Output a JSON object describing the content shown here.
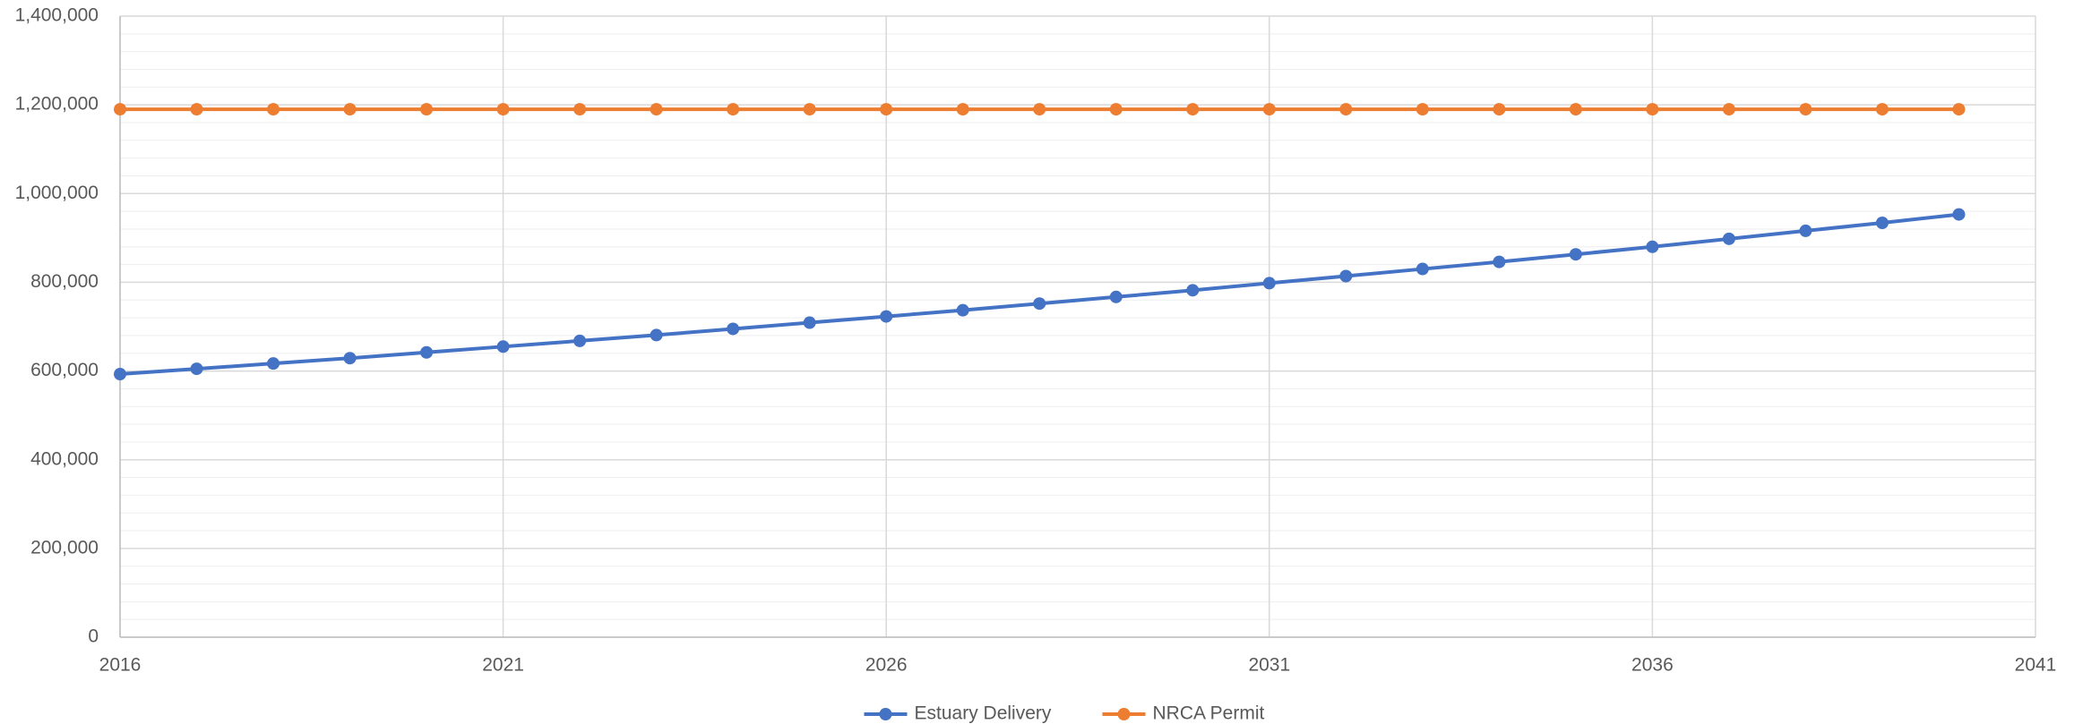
{
  "chart_data": {
    "type": "line",
    "x": [
      2016,
      2017,
      2018,
      2019,
      2020,
      2021,
      2022,
      2023,
      2024,
      2025,
      2026,
      2027,
      2028,
      2029,
      2030,
      2031,
      2032,
      2033,
      2034,
      2035,
      2036,
      2037,
      2038,
      2039,
      2040
    ],
    "series": [
      {
        "name": "Estuary Delivery",
        "color": "#4472c4",
        "values": [
          593000,
          605000,
          617000,
          629000,
          642000,
          655000,
          668000,
          681000,
          695000,
          709000,
          723000,
          737000,
          752000,
          767000,
          782000,
          798000,
          814000,
          830000,
          846000,
          863000,
          880000,
          898000,
          916000,
          934000,
          953000
        ]
      },
      {
        "name": "NRCA Permit",
        "color": "#ed7d31",
        "values": [
          1190000,
          1190000,
          1190000,
          1190000,
          1190000,
          1190000,
          1190000,
          1190000,
          1190000,
          1190000,
          1190000,
          1190000,
          1190000,
          1190000,
          1190000,
          1190000,
          1190000,
          1190000,
          1190000,
          1190000,
          1190000,
          1190000,
          1190000,
          1190000,
          1190000
        ]
      }
    ],
    "xlim": [
      2016,
      2041
    ],
    "xticks": [
      2016,
      2021,
      2026,
      2031,
      2036,
      2041
    ],
    "ylim": [
      0,
      1400000
    ],
    "yticks": [
      0,
      {
        "value": 200000,
        "label": "200,000"
      },
      {
        "value": 400000,
        "label": "400,000"
      },
      {
        "value": 600000,
        "label": "600,000"
      },
      {
        "value": 800000,
        "label": "800,000"
      },
      {
        "value": 1000000,
        "label": "1,000,000"
      },
      {
        "value": 1200000,
        "label": "1,200,000"
      },
      {
        "value": 1400000,
        "label": "1,400,000"
      }
    ],
    "grid": true,
    "minor_grid": true,
    "legend": "bottom"
  }
}
